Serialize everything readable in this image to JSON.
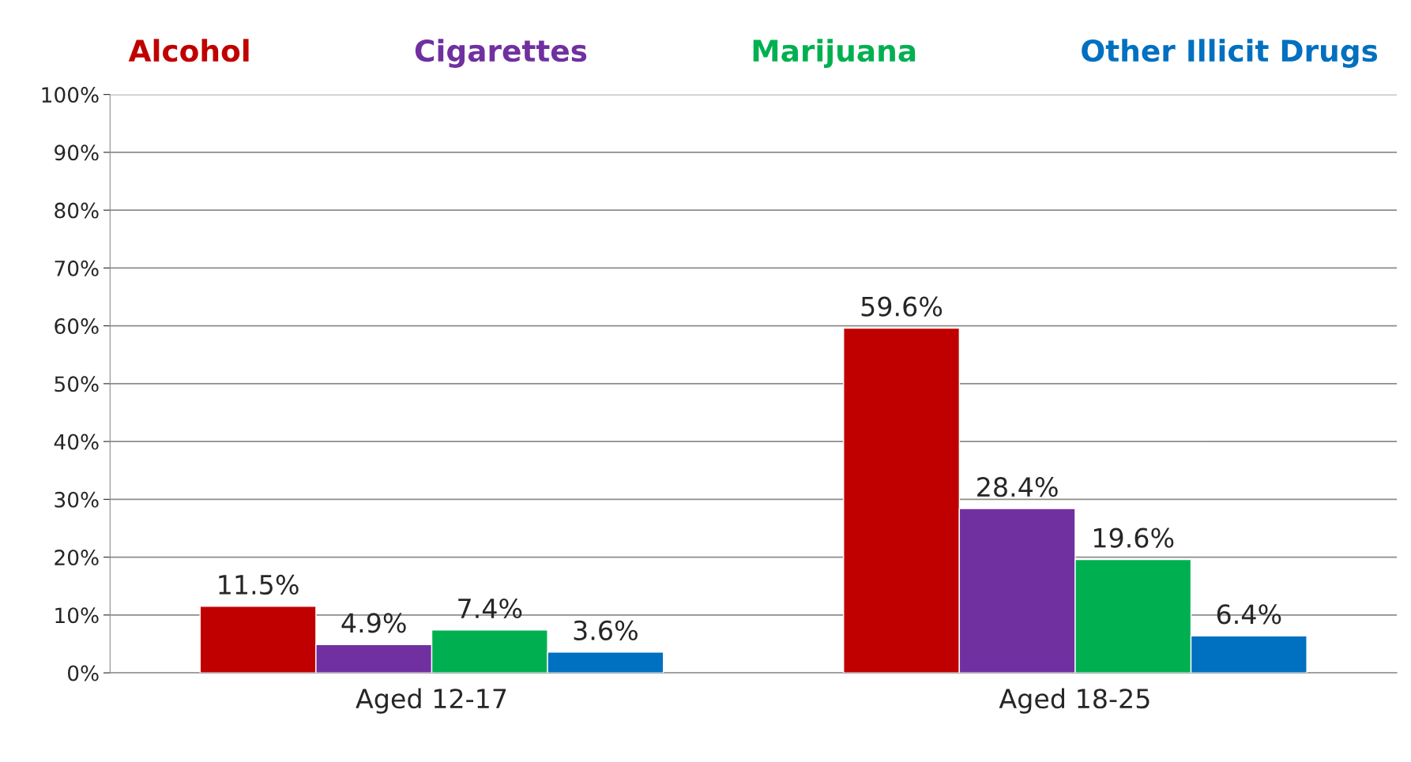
{
  "chart_data": {
    "type": "bar",
    "categories": [
      "Aged 12-17",
      "Aged 18-25"
    ],
    "series": [
      {
        "name": "Alcohol",
        "color": "#c00000",
        "values": [
          11.5,
          59.6
        ],
        "value_labels": [
          "11.5%",
          "59.6%"
        ]
      },
      {
        "name": "Cigarettes",
        "color": "#7030a0",
        "values": [
          4.9,
          28.4
        ],
        "value_labels": [
          "4.9%",
          "28.4%"
        ]
      },
      {
        "name": "Marijuana",
        "color": "#00b050",
        "values": [
          7.4,
          19.6
        ],
        "value_labels": [
          "7.4%",
          "19.6%"
        ]
      },
      {
        "name": "Other Illicit Drugs",
        "color": "#0070c0",
        "values": [
          3.6,
          6.4
        ],
        "value_labels": [
          "3.6%",
          "6.4%"
        ]
      }
    ],
    "ylim": [
      0,
      100
    ],
    "yticks": [
      {
        "value": 0,
        "label": "0%"
      },
      {
        "value": 10,
        "label": "10%"
      },
      {
        "value": 20,
        "label": "20%"
      },
      {
        "value": 30,
        "label": "30%"
      },
      {
        "value": 40,
        "label": "40%"
      },
      {
        "value": 50,
        "label": "50%"
      },
      {
        "value": 60,
        "label": "60%"
      },
      {
        "value": 70,
        "label": "70%"
      },
      {
        "value": 80,
        "label": "80%"
      },
      {
        "value": 90,
        "label": "90%"
      },
      {
        "value": 100,
        "label": "100%"
      }
    ],
    "grid": "y",
    "legend": "top"
  }
}
